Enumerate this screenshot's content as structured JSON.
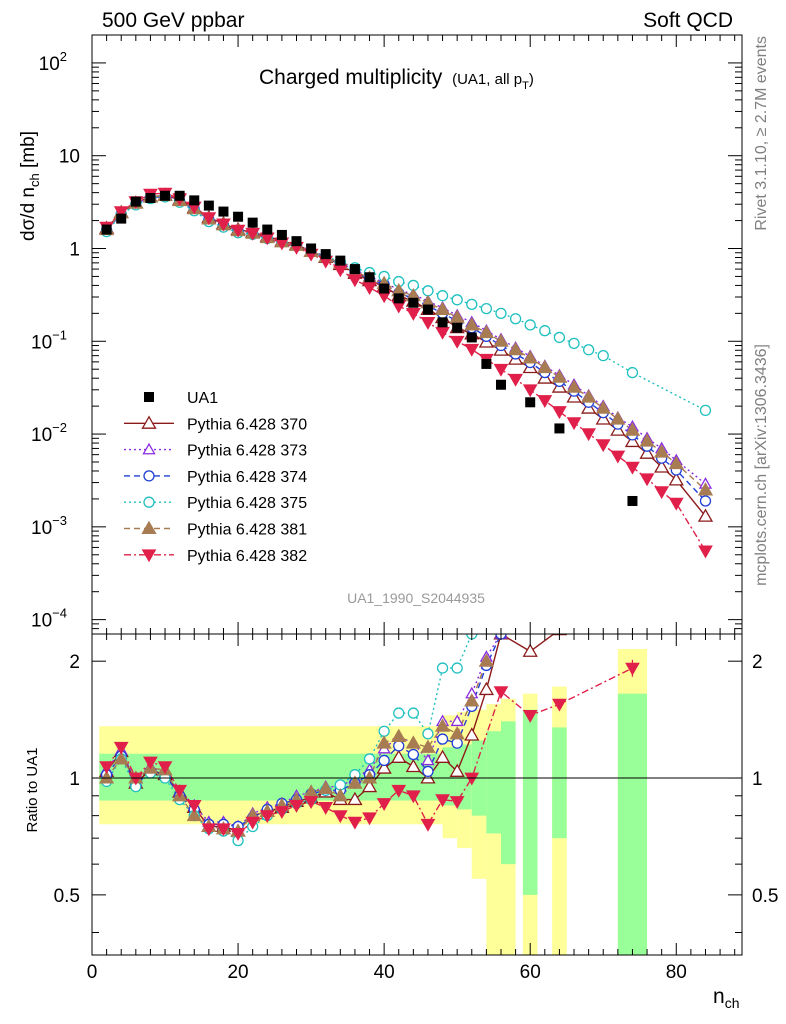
{
  "header": {
    "left": "500 GeV ppbar",
    "right": "Soft QCD"
  },
  "side_labels": {
    "top": "Rivet 3.1.10, ≥ 2.7M events",
    "bottom": "mcplots.cern.ch [arXiv:1306.3436]"
  },
  "chart_data": {
    "type": "scatter",
    "title": "Charged multiplicity",
    "title_suffix": "(UA1, all p",
    "title_suffix_sub": "T",
    "title_suffix_end": ")",
    "analysis_id": "UA1_1990_S2044935",
    "ylabel_main": "dσ/d n",
    "ylabel_main_sub": "ch",
    "ylabel_main_unit": " [mb]",
    "ylabel_ratio": "Ratio to UA1",
    "xlabel": "n",
    "xlabel_sub": "ch",
    "xlim": [
      0,
      89
    ],
    "ylim_main": [
      7e-05,
      200
    ],
    "ylim_ratio": [
      0.35,
      2.35
    ],
    "yscale_main": "log",
    "yscale_ratio": "log",
    "x_ticks": [
      "0",
      "20",
      "40",
      "60",
      "80"
    ],
    "y_ticks_main": [
      {
        "v": 0.0001,
        "base": "10",
        "exp": "−4"
      },
      {
        "v": 0.001,
        "base": "10",
        "exp": "−3"
      },
      {
        "v": 0.01,
        "base": "10",
        "exp": "−2"
      },
      {
        "v": 0.1,
        "base": "10",
        "exp": "−1"
      },
      {
        "v": 1,
        "base": "1",
        "exp": ""
      },
      {
        "v": 10,
        "base": "10",
        "exp": ""
      },
      {
        "v": 100,
        "base": "10",
        "exp": "2"
      }
    ],
    "y_ticks_ratio": [
      {
        "v": 0.5,
        "label": "0.5"
      },
      {
        "v": 1,
        "label": "1"
      },
      {
        "v": 2,
        "label": "2"
      }
    ],
    "legend_position": "lower-left",
    "data": {
      "name": "UA1",
      "x": [
        2,
        4,
        6,
        8,
        10,
        12,
        14,
        16,
        18,
        20,
        22,
        24,
        26,
        28,
        30,
        32,
        34,
        36,
        38,
        40,
        42,
        44,
        46,
        48,
        50,
        52,
        54,
        56,
        60,
        64,
        74
      ],
      "y": [
        1.6,
        2.1,
        3.2,
        3.5,
        3.7,
        3.7,
        3.3,
        2.9,
        2.5,
        2.2,
        1.9,
        1.6,
        1.4,
        1.2,
        1.0,
        0.87,
        0.74,
        0.6,
        0.49,
        0.37,
        0.29,
        0.26,
        0.22,
        0.16,
        0.14,
        0.11,
        0.057,
        0.034,
        0.022,
        0.0115,
        0.0019
      ]
    },
    "bands": [
      {
        "x0": 1,
        "x1": 48,
        "stat_lo": 0.875,
        "stat_hi": 1.155,
        "tot_lo": 0.76,
        "tot_hi": 1.36
      },
      {
        "x0": 48,
        "x1": 50,
        "stat_lo": 0.85,
        "stat_hi": 1.2,
        "tot_lo": 0.7,
        "tot_hi": 1.45
      },
      {
        "x0": 50,
        "x1": 52,
        "stat_lo": 0.83,
        "stat_hi": 1.22,
        "tot_lo": 0.66,
        "tot_hi": 1.48
      },
      {
        "x0": 52,
        "x1": 54,
        "stat_lo": 0.8,
        "stat_hi": 1.25,
        "tot_lo": 0.55,
        "tot_hi": 1.5
      },
      {
        "x0": 54,
        "x1": 56,
        "stat_lo": 0.72,
        "stat_hi": 1.32,
        "tot_lo": 0.35,
        "tot_hi": 1.55
      },
      {
        "x0": 56,
        "x1": 58,
        "stat_lo": 0.6,
        "stat_hi": 1.4,
        "tot_lo": 0.35,
        "tot_hi": 1.6
      },
      {
        "x0": 59,
        "x1": 61,
        "stat_lo": 0.5,
        "stat_hi": 1.5,
        "tot_lo": 0.35,
        "tot_hi": 1.65
      },
      {
        "x0": 63,
        "x1": 65,
        "stat_lo": 0.7,
        "stat_hi": 1.35,
        "tot_lo": 0.35,
        "tot_hi": 1.72
      },
      {
        "x0": 72,
        "x1": 76,
        "stat_lo": 0.35,
        "stat_hi": 1.65,
        "tot_lo": 0.35,
        "tot_hi": 2.15
      }
    ],
    "series": [
      {
        "name": "Pythia 6.428 370",
        "color": "#8b1a1a",
        "marker": "triangle-up-open",
        "dash": "",
        "x": [
          2,
          4,
          6,
          8,
          10,
          12,
          14,
          16,
          18,
          20,
          22,
          24,
          26,
          28,
          30,
          32,
          34,
          36,
          38,
          40,
          42,
          44,
          46,
          48,
          50,
          52,
          54,
          56,
          58,
          60,
          62,
          64,
          66,
          68,
          70,
          72,
          74,
          76,
          78,
          80,
          84
        ],
        "y": [
          1.65,
          2.45,
          3.1,
          3.6,
          3.75,
          3.35,
          2.75,
          2.15,
          1.85,
          1.6,
          1.5,
          1.35,
          1.2,
          1.1,
          0.93,
          0.8,
          0.67,
          0.54,
          0.45,
          0.39,
          0.31,
          0.27,
          0.22,
          0.18,
          0.14,
          0.12,
          0.098,
          0.08,
          0.064,
          0.052,
          0.04,
          0.032,
          0.025,
          0.019,
          0.0145,
          0.011,
          0.0083,
          0.0062,
          0.0044,
          0.0032,
          0.0013
        ],
        "ratio_x": [
          2,
          4,
          6,
          8,
          10,
          12,
          14,
          16,
          18,
          20,
          22,
          24,
          26,
          28,
          30,
          32,
          34,
          36,
          38,
          40,
          42,
          44,
          46,
          48,
          50,
          52,
          54,
          56,
          60,
          64
        ],
        "ratio": [
          1.04,
          1.17,
          0.97,
          1.05,
          1.02,
          0.92,
          0.84,
          0.75,
          0.75,
          0.73,
          0.8,
          0.82,
          0.84,
          0.87,
          0.89,
          0.92,
          0.88,
          0.88,
          0.95,
          1.06,
          1.13,
          1.07,
          1.0,
          1.13,
          1.04,
          1.29,
          1.69,
          2.35,
          2.12,
          2.41
        ]
      },
      {
        "name": "Pythia 6.428 373",
        "color": "#8a2be2",
        "marker": "triangle-up-open-small",
        "dash": "2,3",
        "x": [
          2,
          4,
          6,
          8,
          10,
          12,
          14,
          16,
          18,
          20,
          22,
          24,
          26,
          28,
          30,
          32,
          34,
          36,
          38,
          40,
          42,
          44,
          46,
          48,
          50,
          52,
          54,
          56,
          58,
          60,
          62,
          64,
          66,
          68,
          70,
          72,
          74,
          76,
          78,
          80,
          84
        ],
        "y": [
          1.62,
          2.4,
          3.05,
          3.55,
          3.7,
          3.3,
          2.7,
          2.1,
          1.82,
          1.58,
          1.48,
          1.33,
          1.2,
          1.1,
          0.95,
          0.82,
          0.7,
          0.58,
          0.5,
          0.43,
          0.36,
          0.32,
          0.27,
          0.23,
          0.19,
          0.16,
          0.13,
          0.105,
          0.085,
          0.069,
          0.054,
          0.043,
          0.034,
          0.026,
          0.02,
          0.015,
          0.012,
          0.009,
          0.007,
          0.0052,
          0.0029
        ],
        "ratio_x": [
          2,
          4,
          6,
          8,
          10,
          12,
          14,
          16,
          18,
          20,
          22,
          24,
          26,
          28,
          30,
          32,
          34,
          36,
          38,
          40,
          42,
          44,
          46,
          48,
          50,
          52,
          54,
          56
        ],
        "ratio": [
          1.05,
          1.18,
          0.98,
          1.07,
          1.03,
          0.92,
          0.85,
          0.77,
          0.77,
          0.75,
          0.81,
          0.84,
          0.86,
          0.9,
          0.92,
          0.95,
          0.95,
          1.0,
          1.05,
          1.19,
          1.28,
          1.23,
          1.11,
          1.4,
          1.4,
          1.65,
          2.05,
          2.35
        ]
      },
      {
        "name": "Pythia 6.428 374",
        "color": "#1f3fd6",
        "marker": "circle-open",
        "dash": "6,4",
        "x": [
          2,
          4,
          6,
          8,
          10,
          12,
          14,
          16,
          18,
          20,
          22,
          24,
          26,
          28,
          30,
          32,
          34,
          36,
          38,
          40,
          42,
          44,
          46,
          48,
          50,
          52,
          54,
          56,
          58,
          60,
          62,
          64,
          66,
          68,
          70,
          72,
          74,
          76,
          78,
          80,
          84
        ],
        "y": [
          1.58,
          2.35,
          3.0,
          3.5,
          3.65,
          3.25,
          2.65,
          2.05,
          1.78,
          1.55,
          1.45,
          1.3,
          1.18,
          1.07,
          0.92,
          0.8,
          0.68,
          0.56,
          0.47,
          0.41,
          0.33,
          0.29,
          0.24,
          0.2,
          0.165,
          0.14,
          0.113,
          0.09,
          0.073,
          0.059,
          0.046,
          0.037,
          0.029,
          0.022,
          0.017,
          0.0128,
          0.0098,
          0.0074,
          0.0055,
          0.0041,
          0.0019
        ],
        "ratio_x": [
          2,
          4,
          6,
          8,
          10,
          12,
          14,
          16,
          18,
          20,
          22,
          24,
          26,
          28,
          30,
          32,
          34,
          36,
          38,
          40,
          42,
          44,
          46,
          48,
          50,
          52,
          54,
          56
        ],
        "ratio": [
          1.02,
          1.14,
          0.96,
          1.04,
          1.02,
          0.9,
          0.83,
          0.76,
          0.76,
          0.75,
          0.79,
          0.83,
          0.86,
          0.88,
          0.91,
          0.93,
          0.93,
          0.97,
          1.02,
          1.11,
          1.21,
          1.15,
          1.04,
          1.26,
          1.23,
          1.53,
          1.95,
          2.35
        ]
      },
      {
        "name": "Pythia 6.428 375",
        "color": "#20c0c0",
        "marker": "circle-open",
        "dash": "2,3",
        "x": [
          2,
          4,
          6,
          8,
          10,
          12,
          14,
          16,
          18,
          20,
          22,
          24,
          26,
          28,
          30,
          32,
          34,
          36,
          38,
          40,
          42,
          44,
          46,
          48,
          50,
          52,
          54,
          56,
          58,
          60,
          62,
          64,
          66,
          68,
          70,
          74,
          84
        ],
        "y": [
          1.52,
          2.3,
          2.95,
          3.45,
          3.6,
          3.15,
          2.55,
          1.95,
          1.7,
          1.48,
          1.42,
          1.28,
          1.17,
          1.06,
          0.92,
          0.82,
          0.72,
          0.62,
          0.55,
          0.5,
          0.44,
          0.4,
          0.35,
          0.31,
          0.28,
          0.25,
          0.225,
          0.2,
          0.175,
          0.15,
          0.13,
          0.11,
          0.095,
          0.081,
          0.07,
          0.046,
          0.018
        ],
        "ratio_x": [
          2,
          4,
          6,
          8,
          10,
          12,
          14,
          16,
          18,
          20,
          22,
          24,
          26,
          28,
          30,
          32,
          34,
          36,
          38,
          40,
          42,
          44,
          46,
          48,
          50,
          52
        ],
        "ratio": [
          0.98,
          1.12,
          0.95,
          1.03,
          1.0,
          0.88,
          0.8,
          0.74,
          0.73,
          0.69,
          0.75,
          0.8,
          0.83,
          0.86,
          0.88,
          0.93,
          0.96,
          1.02,
          1.12,
          1.32,
          1.47,
          1.47,
          1.3,
          1.92,
          1.92,
          2.35
        ]
      },
      {
        "name": "Pythia 6.428 381",
        "color": "#a87c52",
        "marker": "triangle-up-filled",
        "dash": "6,4",
        "x": [
          2,
          4,
          6,
          8,
          10,
          12,
          14,
          16,
          18,
          20,
          22,
          24,
          26,
          28,
          30,
          32,
          34,
          36,
          38,
          40,
          42,
          44,
          46,
          48,
          50,
          52,
          54,
          56,
          58,
          60,
          62,
          64,
          66,
          68,
          70,
          72,
          74,
          76,
          78,
          80,
          84
        ],
        "y": [
          1.6,
          2.42,
          3.08,
          3.58,
          3.72,
          3.28,
          2.68,
          2.08,
          1.8,
          1.56,
          1.46,
          1.31,
          1.18,
          1.08,
          0.93,
          0.81,
          0.69,
          0.57,
          0.48,
          0.42,
          0.35,
          0.31,
          0.26,
          0.22,
          0.18,
          0.15,
          0.124,
          0.1,
          0.081,
          0.066,
          0.052,
          0.041,
          0.032,
          0.025,
          0.019,
          0.0145,
          0.011,
          0.0084,
          0.0064,
          0.0048,
          0.0025
        ],
        "ratio_x": [
          2,
          4,
          6,
          8,
          10,
          12,
          14,
          16,
          18,
          20,
          22,
          24,
          26,
          28,
          30,
          32,
          34,
          36,
          38,
          40,
          42,
          44,
          46,
          48,
          50,
          52,
          54
        ],
        "ratio": [
          1.0,
          1.12,
          1.0,
          1.06,
          1.05,
          0.9,
          0.8,
          0.75,
          0.74,
          0.73,
          0.8,
          0.82,
          0.85,
          0.88,
          0.92,
          0.94,
          0.9,
          0.97,
          1.0,
          1.23,
          1.28,
          1.23,
          1.2,
          1.36,
          1.3,
          1.58,
          2.0
        ]
      },
      {
        "name": "Pythia 6.428 382",
        "color": "#e0204a",
        "marker": "triangle-down-filled",
        "dash": "7,3,2,3",
        "x": [
          2,
          4,
          6,
          8,
          10,
          12,
          14,
          16,
          18,
          20,
          22,
          24,
          26,
          28,
          30,
          32,
          34,
          36,
          38,
          40,
          42,
          44,
          46,
          48,
          50,
          52,
          54,
          56,
          58,
          60,
          62,
          64,
          66,
          68,
          70,
          72,
          74,
          76,
          78,
          80,
          84
        ],
        "y": [
          1.7,
          2.5,
          3.2,
          3.85,
          3.95,
          3.45,
          2.8,
          2.15,
          1.84,
          1.58,
          1.46,
          1.3,
          1.15,
          1.03,
          0.87,
          0.73,
          0.59,
          0.46,
          0.38,
          0.31,
          0.24,
          0.2,
          0.16,
          0.125,
          0.1,
          0.082,
          0.064,
          0.05,
          0.039,
          0.03,
          0.023,
          0.0175,
          0.0133,
          0.0101,
          0.0077,
          0.0058,
          0.0044,
          0.0033,
          0.0024,
          0.0018,
          0.00055
        ],
        "ratio_x": [
          2,
          4,
          6,
          8,
          10,
          12,
          14,
          16,
          18,
          20,
          22,
          24,
          26,
          28,
          30,
          32,
          34,
          36,
          38,
          40,
          42,
          44,
          46,
          48,
          50,
          52,
          56,
          60,
          64,
          74
        ],
        "ratio": [
          1.07,
          1.2,
          1.0,
          1.1,
          1.07,
          0.93,
          0.85,
          0.74,
          0.74,
          0.72,
          0.77,
          0.8,
          0.82,
          0.85,
          0.87,
          0.84,
          0.8,
          0.77,
          0.79,
          0.86,
          0.93,
          0.9,
          0.76,
          0.88,
          0.87,
          1.0,
          1.67,
          1.45,
          1.55,
          1.92
        ]
      }
    ]
  }
}
